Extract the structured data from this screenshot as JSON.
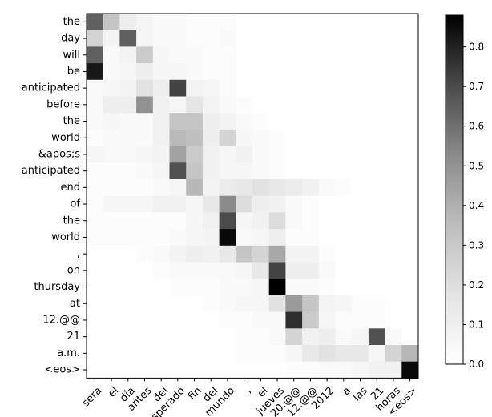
{
  "chart_data": {
    "type": "heatmap",
    "title": "",
    "xlabel": "",
    "ylabel": "",
    "x_labels": [
      "será",
      "el",
      "día",
      "antes",
      "del",
      "esperado",
      "fin",
      "del",
      "mundo",
      ",",
      "el",
      "jueves",
      "20.@@",
      "12.@@",
      "2012",
      "a",
      "las",
      "21",
      "horas",
      "<eos>"
    ],
    "y_labels": [
      "the",
      "day",
      "will",
      "be",
      "anticipated",
      "before",
      "the",
      "world",
      "&apos;s",
      "anticipated",
      "end",
      "of",
      "the",
      "world",
      ",",
      "on",
      "thursday",
      "at",
      "12.@@",
      "21",
      "a.m.",
      "<eos>"
    ],
    "colorbar": {
      "range": [
        0.0,
        0.88
      ],
      "ticks": [
        "0.0",
        "0.1",
        "0.2",
        "0.3",
        "0.4",
        "0.5",
        "0.6",
        "0.7",
        "0.8"
      ],
      "colormap": "Greys"
    },
    "values": [
      [
        0.55,
        0.2,
        0.06,
        0.03,
        0.02,
        0.02,
        0.01,
        0.01,
        0.01,
        0,
        0,
        0,
        0,
        0,
        0,
        0,
        0,
        0,
        0,
        0
      ],
      [
        0.15,
        0.04,
        0.55,
        0.03,
        0.02,
        0.02,
        0.01,
        0.01,
        0.02,
        0,
        0,
        0,
        0,
        0,
        0,
        0,
        0,
        0,
        0,
        0
      ],
      [
        0.55,
        0.02,
        0.04,
        0.18,
        0.03,
        0.02,
        0.02,
        0.01,
        0.01,
        0,
        0,
        0,
        0,
        0,
        0,
        0,
        0,
        0,
        0,
        0
      ],
      [
        0.8,
        0.02,
        0.03,
        0.06,
        0.03,
        0.03,
        0.02,
        0.01,
        0.01,
        0,
        0,
        0,
        0,
        0,
        0,
        0,
        0,
        0,
        0,
        0
      ],
      [
        0.02,
        0.03,
        0.04,
        0.1,
        0.06,
        0.65,
        0.04,
        0.03,
        0.01,
        0,
        0,
        0,
        0,
        0,
        0,
        0,
        0,
        0,
        0,
        0
      ],
      [
        0.02,
        0.06,
        0.06,
        0.38,
        0.05,
        0.03,
        0.09,
        0.04,
        0.02,
        0.01,
        0,
        0,
        0,
        0,
        0,
        0,
        0,
        0,
        0,
        0
      ],
      [
        0.02,
        0.03,
        0.02,
        0.02,
        0.05,
        0.2,
        0.2,
        0.06,
        0.04,
        0.02,
        0.01,
        0,
        0,
        0,
        0,
        0,
        0,
        0,
        0,
        0
      ],
      [
        0.01,
        0.02,
        0.02,
        0.02,
        0.05,
        0.24,
        0.22,
        0.06,
        0.15,
        0.03,
        0.02,
        0.01,
        0,
        0,
        0,
        0,
        0,
        0,
        0,
        0
      ],
      [
        0.03,
        0.02,
        0.02,
        0.03,
        0.04,
        0.32,
        0.18,
        0.05,
        0.03,
        0.05,
        0.02,
        0.01,
        0,
        0,
        0,
        0,
        0,
        0,
        0,
        0
      ],
      [
        0.01,
        0.01,
        0.01,
        0.02,
        0.03,
        0.6,
        0.2,
        0.05,
        0.03,
        0.03,
        0.02,
        0.01,
        0,
        0,
        0,
        0,
        0,
        0,
        0,
        0
      ],
      [
        0.01,
        0.01,
        0.01,
        0.01,
        0.02,
        0.03,
        0.25,
        0.04,
        0.07,
        0.08,
        0.1,
        0.08,
        0.07,
        0.05,
        0.02,
        0.01,
        0,
        0,
        0,
        0
      ],
      [
        0.01,
        0.03,
        0.03,
        0.03,
        0.05,
        0.05,
        0.03,
        0.08,
        0.4,
        0.12,
        0.06,
        0.05,
        0.02,
        0.01,
        0,
        0,
        0,
        0,
        0,
        0
      ],
      [
        0.01,
        0.01,
        0.01,
        0.01,
        0.01,
        0.01,
        0.03,
        0.05,
        0.62,
        0.03,
        0.05,
        0.12,
        0.02,
        0.01,
        0,
        0,
        0,
        0,
        0,
        0
      ],
      [
        0.01,
        0.01,
        0.01,
        0.01,
        0.01,
        0.02,
        0.03,
        0.04,
        0.85,
        0.02,
        0.03,
        0.06,
        0.01,
        0.01,
        0,
        0,
        0,
        0,
        0,
        0
      ],
      [
        0,
        0,
        0,
        0.01,
        0.02,
        0.04,
        0.06,
        0.05,
        0.08,
        0.2,
        0.15,
        0.3,
        0.04,
        0.04,
        0.01,
        0,
        0,
        0,
        0,
        0
      ],
      [
        0,
        0,
        0,
        0,
        0.01,
        0.02,
        0.02,
        0.02,
        0.02,
        0.03,
        0.08,
        0.65,
        0.06,
        0.06,
        0.02,
        0,
        0,
        0,
        0,
        0
      ],
      [
        0,
        0,
        0,
        0,
        0,
        0.01,
        0.01,
        0.01,
        0.02,
        0.02,
        0.03,
        0.88,
        0.02,
        0.02,
        0.01,
        0,
        0,
        0,
        0,
        0
      ],
      [
        0,
        0,
        0,
        0,
        0,
        0,
        0,
        0.01,
        0.02,
        0.03,
        0.03,
        0.1,
        0.35,
        0.2,
        0.04,
        0.03,
        0.01,
        0.01,
        0,
        0
      ],
      [
        0,
        0,
        0,
        0,
        0,
        0,
        0,
        0,
        0.01,
        0.01,
        0.02,
        0.02,
        0.72,
        0.18,
        0.03,
        0.01,
        0.01,
        0.01,
        0,
        0
      ],
      [
        0,
        0,
        0,
        0,
        0,
        0,
        0,
        0,
        0,
        0.01,
        0.01,
        0.02,
        0.15,
        0.05,
        0.06,
        0.02,
        0.03,
        0.6,
        0.02,
        0
      ],
      [
        0,
        0,
        0,
        0,
        0,
        0,
        0,
        0,
        0,
        0.01,
        0.01,
        0.01,
        0.03,
        0.08,
        0.1,
        0.08,
        0.08,
        0.03,
        0.15,
        0.25
      ],
      [
        0,
        0,
        0,
        0,
        0,
        0,
        0,
        0,
        0,
        0,
        0,
        0,
        0.01,
        0.01,
        0.02,
        0.02,
        0.03,
        0.05,
        0.05,
        0.85
      ]
    ]
  }
}
